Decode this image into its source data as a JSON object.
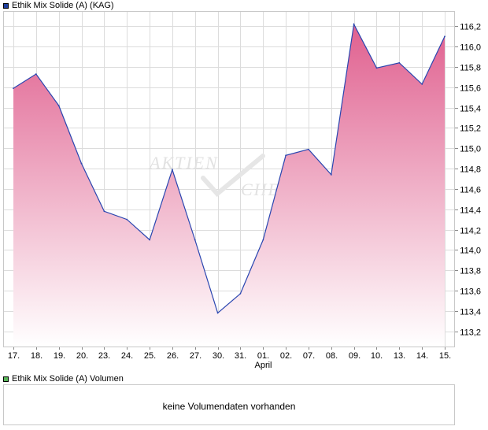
{
  "legend": {
    "main_label": "Ethik Mix Solide (A) (KAG)",
    "main_color": "#1f3f9f",
    "volume_label": "Ethik Mix Solide (A) Volumen",
    "volume_color": "#59b759"
  },
  "watermark": {
    "line1": "AKTIEN",
    "line2": "CHECK"
  },
  "volume": {
    "message": "keine Volumendaten vorhanden"
  },
  "colors": {
    "line": "#2a46b0",
    "fill_top": "#e0608f",
    "fill_bottom": "#ffffff",
    "grid": "#dcdcdc",
    "border": "#c8c8c8"
  },
  "chart_data": {
    "type": "area",
    "title": "",
    "xlabel": "",
    "ylabel": "",
    "x": [
      "17.",
      "18.",
      "19.",
      "20.",
      "23.",
      "24.",
      "25.",
      "26.",
      "27.",
      "30.",
      "31.",
      "01.",
      "02.",
      "07.",
      "08.",
      "09.",
      "10.",
      "13.",
      "14.",
      "15."
    ],
    "x_sublabels": {
      "01.": "April"
    },
    "series": [
      {
        "values": [
          115.59,
          115.73,
          115.42,
          114.85,
          114.38,
          114.3,
          114.1,
          114.79,
          114.1,
          113.38,
          113.57,
          114.1,
          114.93,
          114.99,
          114.74,
          116.22,
          115.79,
          115.84,
          115.63,
          116.1
        ]
      }
    ],
    "ylim": [
      113.05,
      116.35
    ],
    "yticks": [
      113.2,
      113.4,
      113.6,
      113.8,
      114.0,
      114.2,
      114.4,
      114.6,
      114.8,
      115.0,
      115.2,
      115.4,
      115.6,
      115.8,
      116.0,
      116.2
    ],
    "ytick_labels": [
      "113,2",
      "113,4",
      "113,6",
      "113,8",
      "114,0",
      "114,2",
      "114,4",
      "114,6",
      "114,8",
      "115,0",
      "115,2",
      "115,4",
      "115,6",
      "115,8",
      "116,0",
      "116,2"
    ],
    "grid": true,
    "legend": "top-left"
  }
}
